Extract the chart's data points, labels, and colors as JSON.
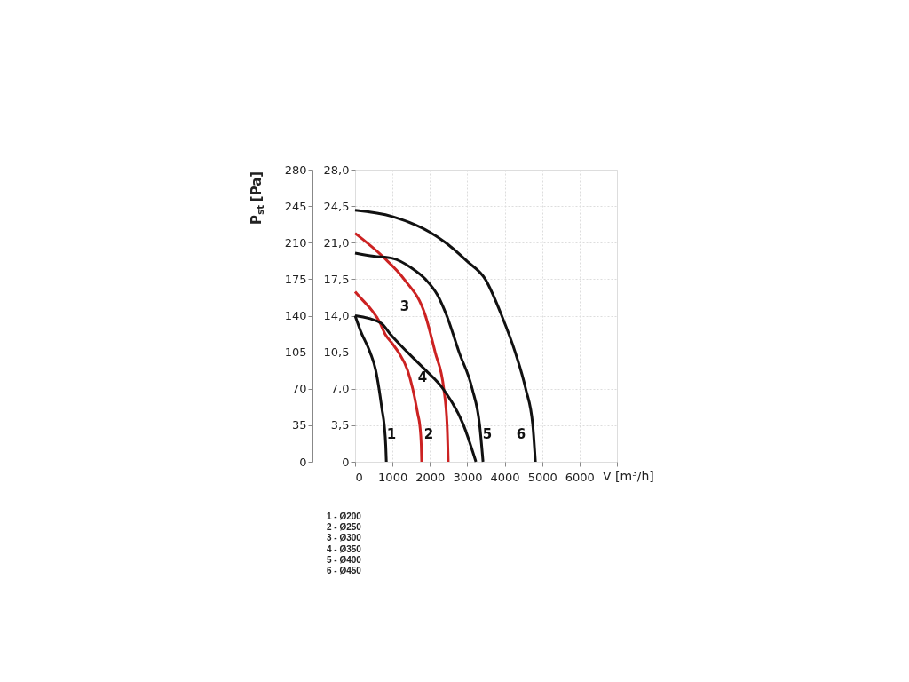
{
  "chart_data": {
    "type": "line",
    "xlabel": "V [m³/h]",
    "ylabel": "P$_{st}$ [Pa]",
    "xlim": [
      0,
      7000
    ],
    "xticks": [
      0,
      1000,
      2000,
      3000,
      4000,
      5000,
      6000,
      {
        "value": 7000,
        "label": null
      }
    ],
    "ylim": [
      0,
      280
    ],
    "yticks": [
      0,
      35,
      70,
      105,
      140,
      175,
      210,
      245,
      280
    ],
    "y2lim": [
      0,
      28
    ],
    "y2ticks": [
      {
        "value": 0,
        "label": "0"
      },
      {
        "value": 3.5,
        "label": "3,5"
      },
      {
        "value": 7,
        "label": "7,0"
      },
      {
        "value": 10.5,
        "label": "10,5"
      },
      {
        "value": 14,
        "label": "14,0"
      },
      {
        "value": 17.5,
        "label": "17,5"
      },
      {
        "value": 21,
        "label": "21,0"
      },
      {
        "value": 24.5,
        "label": "24,5"
      },
      {
        "value": 28,
        "label": "28,0"
      }
    ],
    "grid": true,
    "legend": false,
    "marker": "none",
    "line_style": "solid",
    "series": [
      {
        "color": "#111111",
        "x": [
          0,
          150,
          400,
          550,
          640,
          720,
          780,
          820,
          835
        ],
        "values": [
          140,
          125,
          105,
          88,
          70,
          50,
          35,
          15,
          0
        ]
      },
      {
        "color": "#cc2222",
        "x": [
          0,
          200,
          450,
          640,
          810,
          1000,
          1160,
          1400,
          1540,
          1680,
          1730,
          1770,
          1780
        ],
        "values": [
          163,
          155,
          145,
          135,
          122,
          113,
          105,
          88,
          70,
          45,
          35,
          15,
          0
        ]
      },
      {
        "color": "#cc2222",
        "x": [
          0,
          760,
          1310,
          1880,
          2140,
          2370,
          2460,
          2490
        ],
        "values": [
          219,
          196,
          175,
          140,
          105,
          70,
          35,
          0
        ]
      },
      {
        "color": "#111111",
        "x": [
          0,
          690,
          950,
          1400,
          1880,
          2350,
          2900,
          3230
        ],
        "values": [
          140,
          133,
          122,
          105,
          88,
          70,
          35,
          0
        ]
      },
      {
        "color": "#111111",
        "x": [
          0,
          500,
          1000,
          1500,
          1880,
          2200,
          2450,
          2780,
          3130,
          3330,
          3420
        ],
        "values": [
          200,
          197,
          195,
          186,
          175,
          160,
          140,
          105,
          70,
          35,
          0
        ]
      },
      {
        "color": "#111111",
        "x": [
          0,
          1000,
          2000,
          2420,
          3000,
          3480,
          3920,
          4280,
          4560,
          4750,
          4820
        ],
        "values": [
          241,
          235,
          220,
          210,
          192,
          175,
          140,
          105,
          70,
          35,
          0
        ]
      }
    ],
    "annotations": [
      "1",
      "2",
      "3",
      "4",
      "5",
      "6",
      "1 - Ø200",
      "2 - Ø250",
      "3 - Ø300",
      "4 - Ø350",
      "5 - Ø400",
      "6 - Ø450"
    ]
  }
}
